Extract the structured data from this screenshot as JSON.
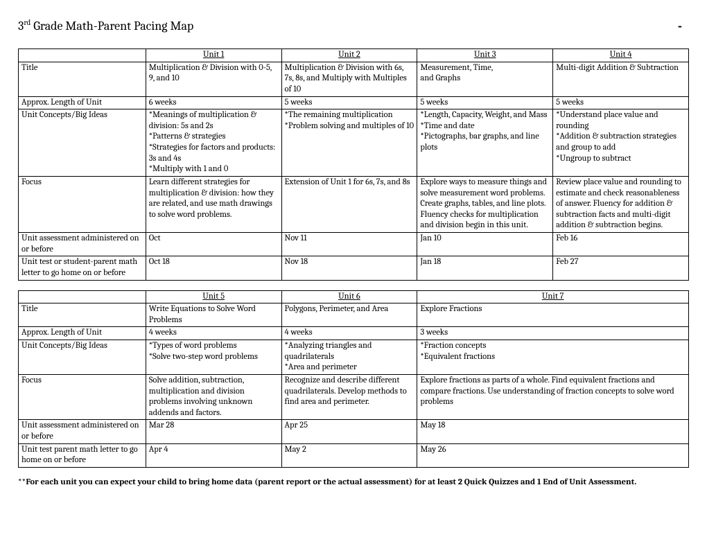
{
  "page": {
    "title_html": "3<sup>rd</sup> Grade Math-Parent Pacing Map",
    "dash": "-",
    "footnote": "**For each unit you can expect your child to bring home data (parent report or the actual assessment) for at least 2 Quick Quizzes and 1 End of Unit Assessment."
  },
  "table1": {
    "col_widths": [
      "19%",
      "20.25%",
      "20.25%",
      "20.25%",
      "20.25%"
    ],
    "headers": [
      "",
      "Unit 1",
      "Unit 2",
      "Unit 3",
      "Unit 4"
    ],
    "rows": [
      {
        "label": "Title",
        "cells": [
          "Multiplication & Division with 0-5, 9, and 10",
          "Multiplication & Division with 6s, 7s, 8s, and Multiply with Multiples\nof 10",
          "Measurement, Time,\nand Graphs",
          "Multi-digit Addition & Subtraction"
        ]
      },
      {
        "label": "Approx. Length of Unit",
        "cells": [
          "6 weeks",
          "5 weeks",
          "5 weeks",
          "5 weeks"
        ]
      },
      {
        "label": "Unit Concepts/Big Ideas",
        "cells": [
          "*Meanings of multiplication & division: 5s and 2s\n*Patterns & strategies\n*Strategies for factors and products: 3s and 4s\n*Multiply with 1 and 0",
          "*The remaining multiplication\n*Problem solving and multiples of 10",
          "*Length, Capacity, Weight, and Mass\n*Time and date\n*Pictographs, bar graphs, and line plots",
          "*Understand place value and rounding\n*Addition & subtraction strategies and group to add\n*Ungroup to subtract"
        ]
      },
      {
        "label": "Focus",
        "cells": [
          "Learn different strategies for multiplication & division: how they are related, and use math drawings to solve word problems.",
          "Extension of Unit 1 for 6s, 7s, and 8s",
          "Explore ways to measure things and solve measurement word problems. Create graphs, tables, and line plots. Fluency checks for multiplication and division begin in this unit.",
          "Review place value and rounding to estimate and check reasonableness of answer. Fluency for addition & subtraction facts and multi-digit addition & subtraction begins."
        ]
      },
      {
        "label": "Unit assessment administered on or before",
        "cells": [
          "Oct",
          "Nov 11",
          "Jan 10",
          "Feb 16"
        ]
      },
      {
        "label": "Unit test or student-parent math letter to go home on or before",
        "cells": [
          "Oct 18",
          "Nov 18",
          "Jan 18",
          "Feb 27"
        ]
      }
    ]
  },
  "table2": {
    "col_widths": [
      "19%",
      "20.25%",
      "20.25%",
      "40.5%"
    ],
    "headers": [
      "",
      "Unit 5",
      "Unit 6",
      "Unit 7"
    ],
    "rows": [
      {
        "label": "Title",
        "cells": [
          "Write Equations to Solve Word Problems",
          "Polygons, Perimeter, and Area",
          "Explore Fractions"
        ]
      },
      {
        "label": "Approx. Length of Unit",
        "cells": [
          "4 weeks",
          "4 weeks",
          "3 weeks"
        ]
      },
      {
        "label": "Unit Concepts/Big Ideas",
        "cells": [
          "*Types of word problems\n*Solve two-step word problems",
          "*Analyzing triangles and quadrilaterals\n*Area and perimeter",
          "*Fraction concepts\n*Equivalent fractions"
        ]
      },
      {
        "label": "Focus",
        "cells": [
          "Solve addition, subtraction, multiplication and division problems involving unknown addends and factors.",
          "Recognize and describe different quadrilaterals. Develop methods to find area and perimeter.",
          "Explore fractions as parts of a whole. Find equivalent fractions and compare fractions. Use understanding of fraction concepts to solve word problems"
        ]
      },
      {
        "label": "Unit assessment administered on or before",
        "cells": [
          "Mar 28",
          "Apr 25",
          "May 18"
        ]
      },
      {
        "label": "Unit test parent math letter to go home on or before",
        "cells": [
          "Apr 4",
          "May 2",
          "May 26"
        ]
      }
    ]
  }
}
